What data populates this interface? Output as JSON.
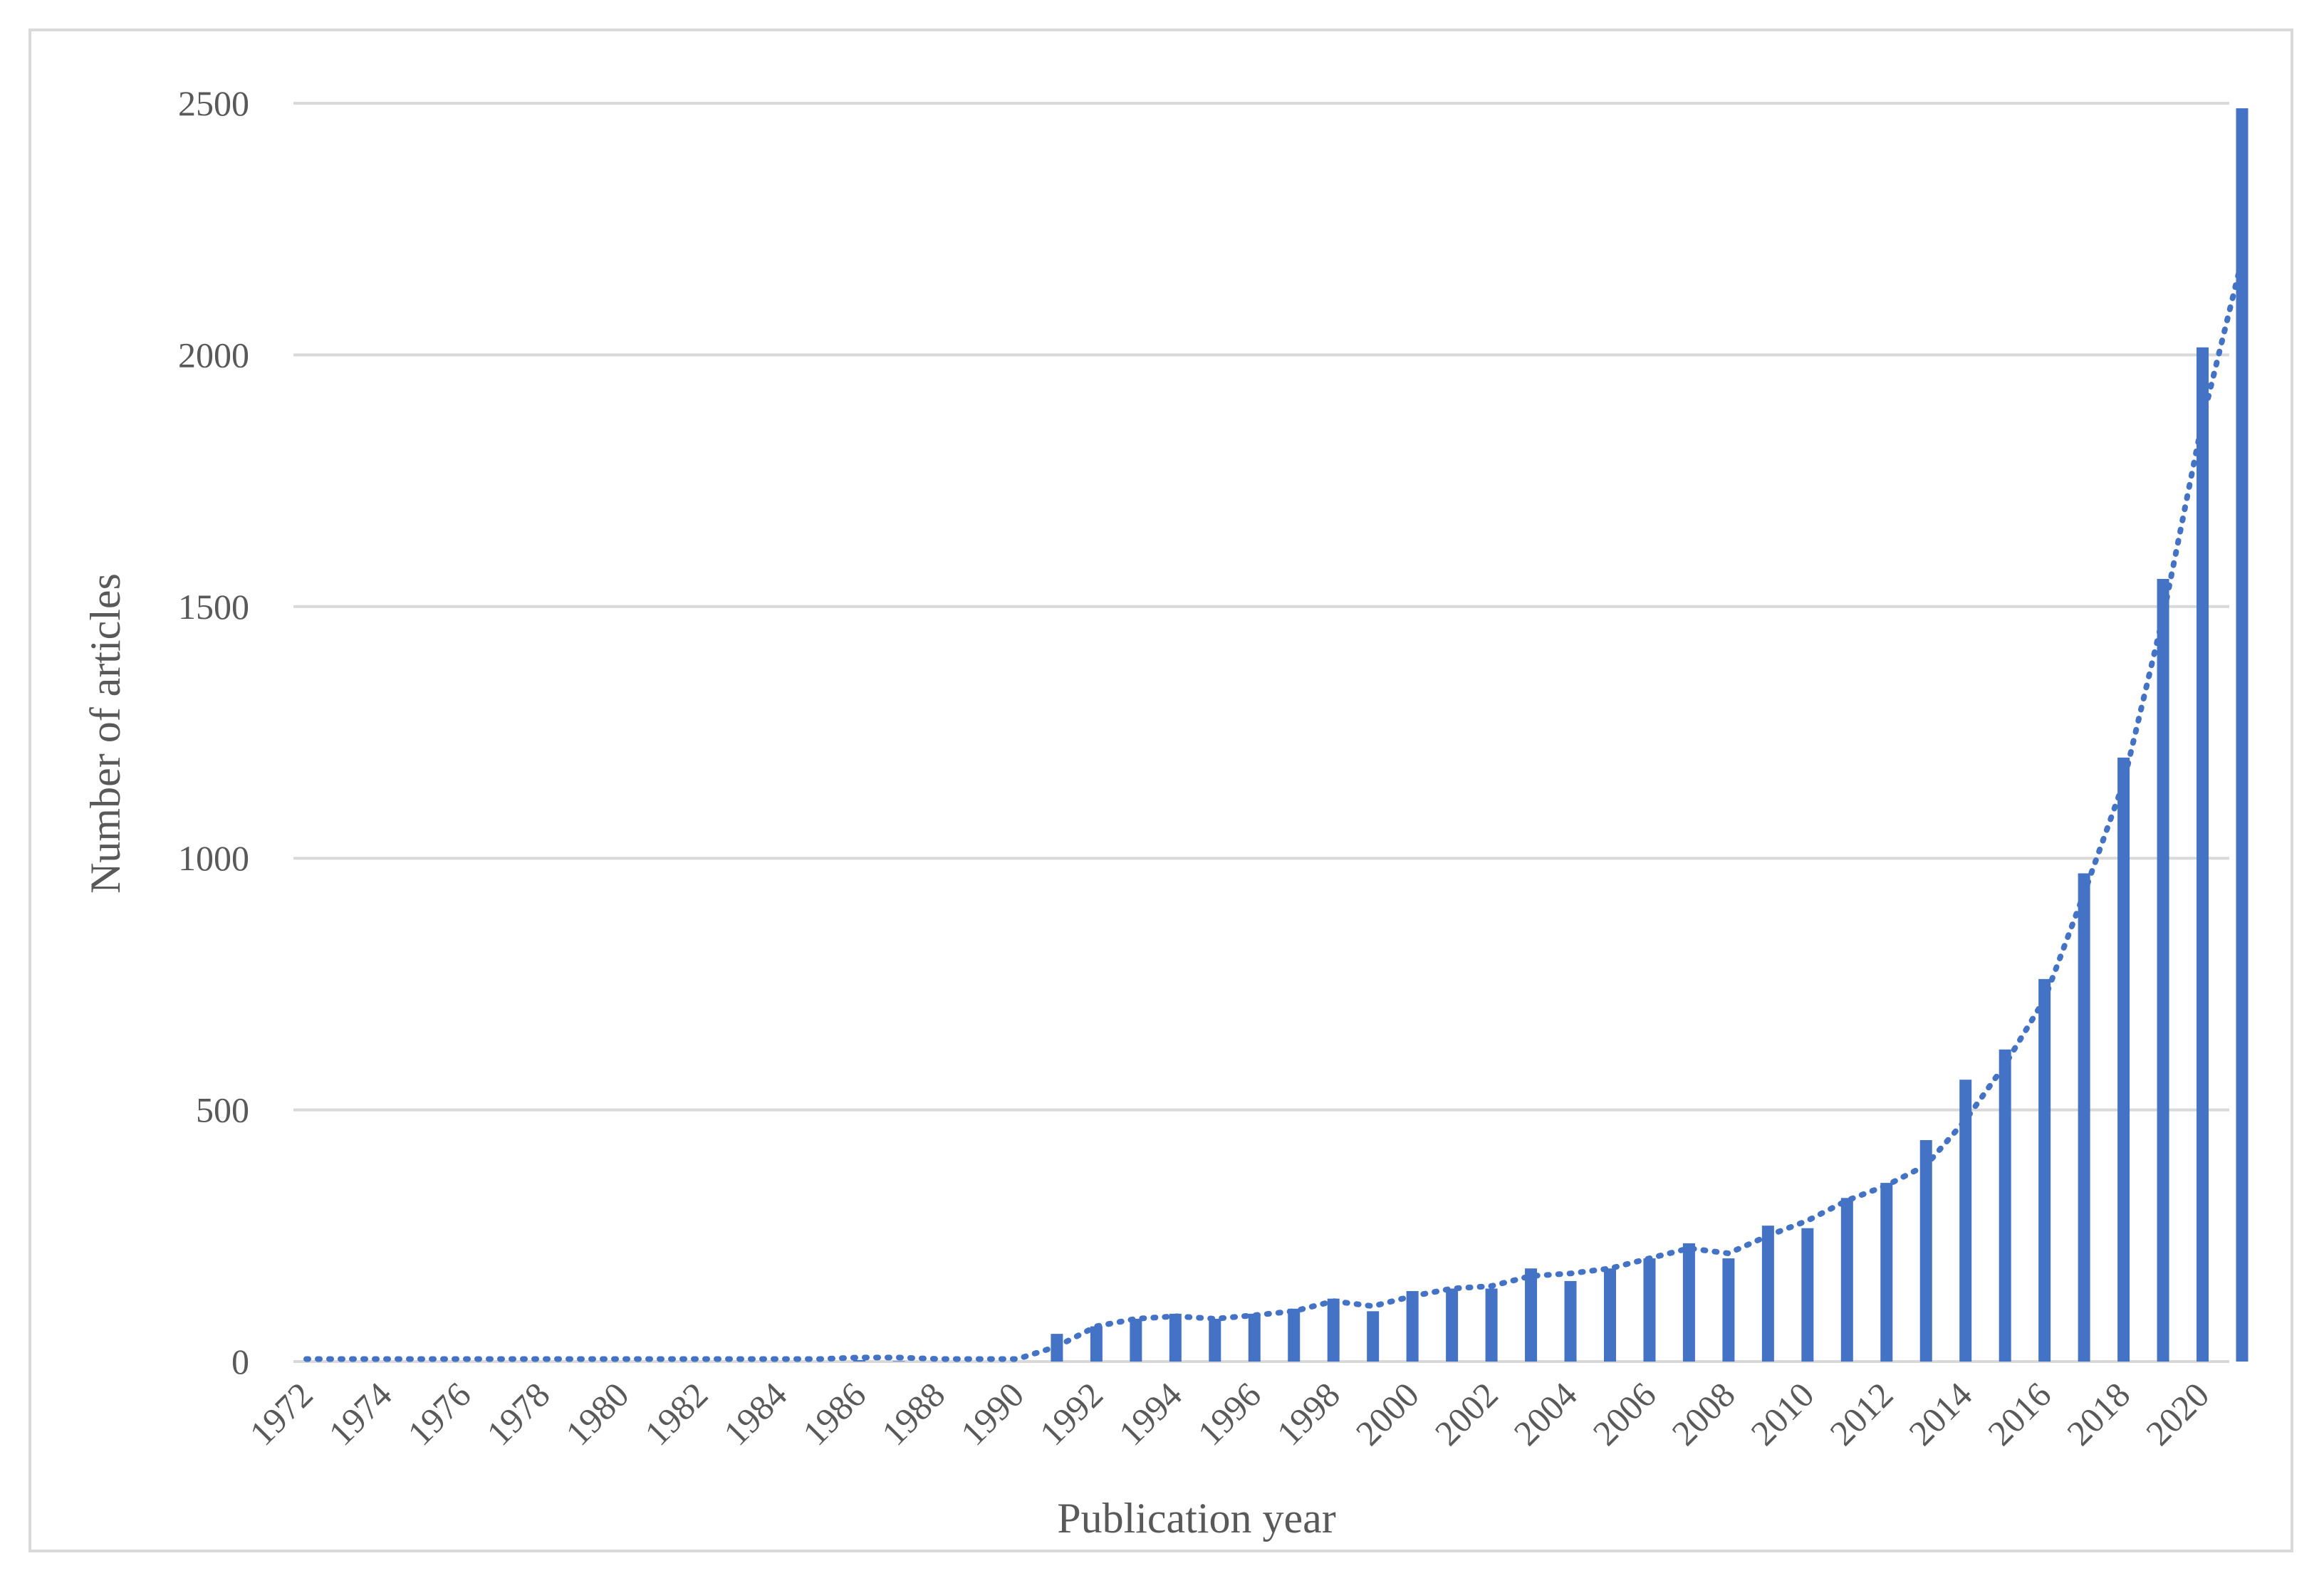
{
  "chart_data": {
    "type": "bar",
    "xlabel": "Publication year",
    "ylabel": "Number of articles",
    "ylim": [
      0,
      2500
    ],
    "yticks": [
      0,
      500,
      1000,
      1500,
      2000,
      2500
    ],
    "xtick_labels": [
      "1972",
      "1974",
      "1976",
      "1978",
      "1980",
      "1982",
      "1984",
      "1986",
      "1988",
      "1990",
      "1992",
      "1994",
      "1996",
      "1998",
      "2000",
      "2002",
      "2004",
      "2006",
      "2008",
      "2010",
      "2012",
      "2014",
      "2016",
      "2018",
      "2020"
    ],
    "grid": "horizontal",
    "legend": "none",
    "categories": [
      1972,
      1973,
      1974,
      1975,
      1976,
      1977,
      1978,
      1979,
      1980,
      1981,
      1982,
      1983,
      1984,
      1985,
      1986,
      1987,
      1988,
      1989,
      1990,
      1991,
      1992,
      1993,
      1994,
      1995,
      1996,
      1997,
      1998,
      1999,
      2000,
      2001,
      2002,
      2003,
      2004,
      2005,
      2006,
      2007,
      2008,
      2009,
      2010,
      2011,
      2012,
      2013,
      2014,
      2015,
      2016,
      2017,
      2018,
      2019,
      2020,
      2021
    ],
    "values": [
      0,
      0,
      0,
      0,
      0,
      0,
      0,
      0,
      0,
      0,
      0,
      0,
      0,
      0,
      3,
      1,
      0,
      0,
      0,
      55,
      70,
      85,
      95,
      85,
      95,
      105,
      125,
      100,
      140,
      145,
      145,
      185,
      160,
      185,
      205,
      235,
      205,
      270,
      265,
      325,
      355,
      440,
      560,
      620,
      760,
      970,
      1200,
      1555,
      2015,
      2490
    ],
    "trendline": {
      "style": "dotted",
      "values": [
        5,
        5,
        5,
        5,
        5,
        5,
        5,
        5,
        5,
        5,
        5,
        5,
        5,
        5,
        8,
        8,
        5,
        5,
        5,
        30,
        70,
        85,
        90,
        85,
        92,
        100,
        120,
        110,
        130,
        145,
        150,
        170,
        175,
        185,
        205,
        225,
        215,
        250,
        280,
        320,
        350,
        390,
        480,
        590,
        720,
        930,
        1150,
        1480,
        1870,
        2190
      ]
    },
    "colors": {
      "bar": "#4472c4",
      "grid": "#d9d9d9",
      "text": "#595959",
      "frame": "#d9d9d9"
    }
  }
}
